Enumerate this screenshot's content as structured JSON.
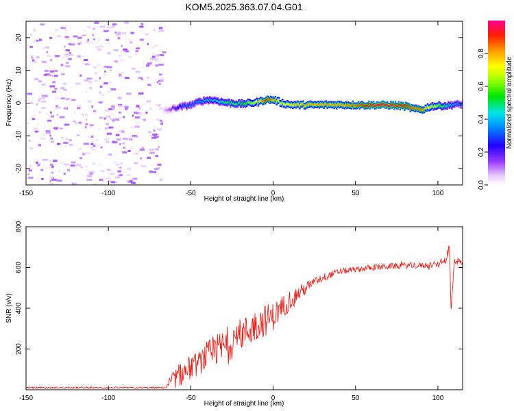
{
  "title": "KOM5.2025.363.07.04.G01",
  "chart_data": [
    {
      "type": "heatmap",
      "xlabel": "Height of straight line (km)",
      "ylabel": "Frequency (Hz)",
      "xlim": [
        -150,
        115
      ],
      "ylim": [
        -25,
        25
      ],
      "xticks": [
        -150,
        -100,
        -50,
        0,
        50,
        100
      ],
      "yticks": [
        -20,
        -10,
        0,
        10,
        20
      ],
      "colorbar": {
        "label": "Normalized spectral amplitude",
        "range": [
          0,
          1
        ],
        "ticks": [
          "0.0",
          "0.2",
          "0.4",
          "0.6",
          "0.8"
        ]
      },
      "noise_region_x": [
        -150,
        -67
      ],
      "signal_track": {
        "x": [
          -67,
          -60,
          -55,
          -50,
          -45,
          -40,
          -35,
          -30,
          -25,
          -20,
          -15,
          -10,
          -5,
          0,
          5,
          10,
          20,
          30,
          40,
          50,
          60,
          70,
          80,
          85,
          90,
          95,
          100,
          105,
          110,
          115
        ],
        "freq": [
          -2.5,
          -1.5,
          -1,
          -0.5,
          0.5,
          1,
          0.8,
          0.2,
          0,
          -0.3,
          0,
          0.3,
          1,
          1,
          0,
          -0.5,
          -0.6,
          -0.5,
          -0.5,
          -0.6,
          -0.6,
          -0.6,
          -1,
          -1.8,
          -2,
          -1,
          -0.8,
          -0.8,
          -0.4,
          -0.4
        ],
        "amplitude": [
          0.05,
          0.2,
          0.3,
          0.3,
          0.35,
          0.4,
          0.4,
          0.5,
          0.5,
          0.5,
          0.6,
          0.7,
          0.9,
          0.8,
          0.7,
          0.75,
          0.8,
          0.8,
          0.8,
          0.85,
          0.95,
          0.95,
          0.9,
          0.85,
          0.85,
          0.7,
          0.6,
          0.45,
          0.35,
          0.3
        ]
      }
    },
    {
      "type": "line",
      "xlabel": "Height of straight line (km)",
      "ylabel": "SNR (v/v)",
      "xlim": [
        -150,
        115
      ],
      "ylim": [
        0,
        800
      ],
      "xticks": [
        -150,
        -100,
        -50,
        0,
        50,
        100
      ],
      "yticks": [
        200,
        400,
        600,
        800
      ],
      "series": [
        {
          "name": "SNR",
          "x": [
            -150,
            -100,
            -65,
            -62,
            -55,
            -50,
            -45,
            -40,
            -35,
            -30,
            -25,
            -20,
            -15,
            -10,
            -5,
            0,
            5,
            10,
            15,
            20,
            25,
            30,
            40,
            50,
            60,
            70,
            80,
            90,
            100,
            105,
            107,
            108,
            110,
            115
          ],
          "values": [
            10,
            10,
            10,
            40,
            80,
            110,
            130,
            170,
            190,
            210,
            240,
            270,
            290,
            320,
            340,
            360,
            400,
            440,
            470,
            500,
            530,
            550,
            580,
            590,
            600,
            605,
            610,
            610,
            615,
            640,
            700,
            380,
            640,
            620
          ],
          "noise_amplitude": [
            4,
            4,
            4,
            40,
            60,
            60,
            60,
            70,
            80,
            90,
            90,
            80,
            80,
            80,
            80,
            70,
            60,
            50,
            40,
            30,
            20,
            20,
            15,
            15,
            15,
            15,
            15,
            15,
            15,
            20,
            40,
            0,
            25,
            10
          ]
        }
      ]
    }
  ]
}
